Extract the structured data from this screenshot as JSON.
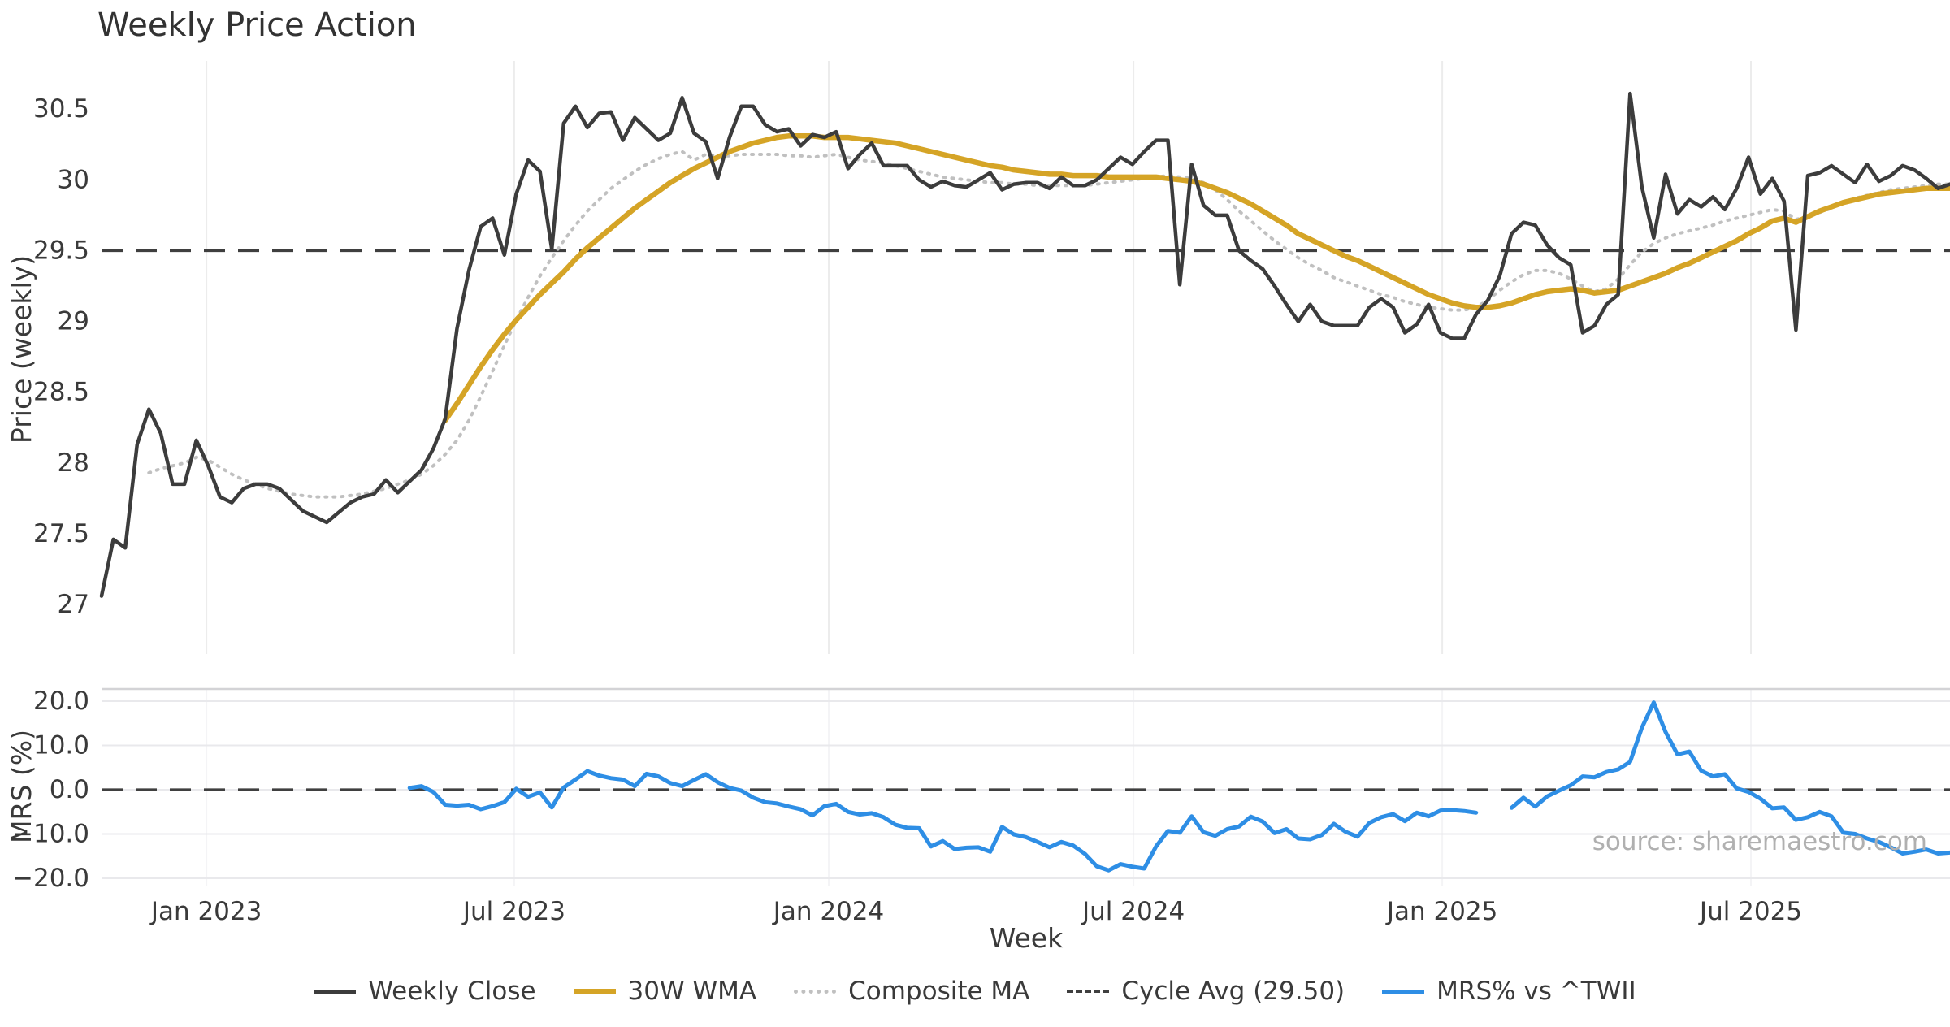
{
  "title": "Weekly Price Action",
  "source_note": "source: sharemaestro.com",
  "colors": {
    "weekly_close": "#3c3c3c",
    "wma": "#d5a426",
    "composite": "#c0c0c0",
    "cycle_avg": "#3f3f3f",
    "mrs": "#2e8ee5",
    "grid": "#ececec",
    "grid_h": "#e9e9ec",
    "panel_spine": "#d3d3d6",
    "tick_text": "#3a3a3a"
  },
  "legend": [
    {
      "label": "Weekly Close",
      "style": "solid",
      "color": "#3c3c3c",
      "thickness": 5
    },
    {
      "label": "30W WMA",
      "style": "solid",
      "color": "#d5a426",
      "thickness": 6
    },
    {
      "label": "Composite MA",
      "style": "dotted",
      "color": "#c0c0c0",
      "thickness": 5
    },
    {
      "label": "Cycle Avg (29.50)",
      "style": "dashed",
      "color": "#3f3f3f",
      "thickness": 4
    },
    {
      "label": "MRS% vs ^TWII",
      "style": "solid",
      "color": "#2e8ee5",
      "thickness": 5
    }
  ],
  "chart_data": {
    "type": "line",
    "title": "Weekly Price Action",
    "xlabel": "Week",
    "x_unit": "weekly, Nov 2022 - Oct 2025",
    "weeks_total": 157,
    "xticks": [
      {
        "pos": 8.85,
        "label": "Jan 2023"
      },
      {
        "pos": 34.83,
        "label": "Jul 2023"
      },
      {
        "pos": 61.37,
        "label": "Jan 2024"
      },
      {
        "pos": 87.09,
        "label": "Jul 2024"
      },
      {
        "pos": 113.15,
        "label": "Jan 2025"
      },
      {
        "pos": 139.2,
        "label": "Jul 2025"
      }
    ],
    "panels": [
      {
        "id": "price",
        "ylabel": "Price (weekly)",
        "ylim": [
          26.65,
          30.84
        ],
        "yticks": [
          {
            "v": 27,
            "label": "27"
          },
          {
            "v": 27.5,
            "label": "27.5"
          },
          {
            "v": 28,
            "label": "28"
          },
          {
            "v": 28.5,
            "label": "28.5"
          },
          {
            "v": 29,
            "label": "29"
          },
          {
            "v": 29.5,
            "label": "29.5"
          },
          {
            "v": 30,
            "label": "30"
          },
          {
            "v": 30.5,
            "label": "30.5"
          }
        ],
        "ref_line": {
          "value": 29.5,
          "label": "Cycle Avg (29.50)"
        },
        "grid": "vertical",
        "series": [
          {
            "name": "Weekly Close",
            "color": "#3c3c3c",
            "width": 4.5,
            "dash": null,
            "values": [
              27.06,
              27.46,
              27.4,
              28.13,
              28.38,
              28.21,
              27.85,
              27.85,
              28.16,
              27.98,
              27.76,
              27.72,
              27.82,
              27.85,
              27.85,
              27.82,
              27.74,
              27.66,
              27.62,
              27.58,
              27.65,
              27.72,
              27.76,
              27.78,
              27.88,
              27.79,
              27.87,
              27.95,
              28.1,
              28.31,
              28.95,
              29.36,
              29.67,
              29.73,
              29.47,
              29.9,
              30.14,
              30.06,
              29.51,
              30.4,
              30.52,
              30.37,
              30.47,
              30.48,
              30.28,
              30.44,
              30.36,
              30.28,
              30.33,
              30.58,
              30.33,
              30.27,
              30.01,
              30.3,
              30.52,
              30.52,
              30.39,
              30.34,
              30.36,
              30.24,
              30.32,
              30.3,
              30.34,
              30.08,
              30.18,
              30.26,
              30.1,
              30.1,
              30.1,
              30.0,
              29.95,
              29.99,
              29.96,
              29.95,
              30.0,
              30.05,
              29.93,
              29.97,
              29.98,
              29.98,
              29.94,
              30.02,
              29.96,
              29.96,
              30.0,
              30.08,
              30.16,
              30.11,
              30.2,
              30.28,
              30.28,
              29.26,
              30.11,
              29.82,
              29.75,
              29.75,
              29.5,
              29.43,
              29.37,
              29.25,
              29.12,
              29.0,
              29.12,
              29.0,
              28.97,
              28.97,
              28.97,
              29.1,
              29.16,
              29.1,
              28.92,
              28.98,
              29.12,
              28.92,
              28.88,
              28.88,
              29.05,
              29.15,
              29.32,
              29.62,
              29.7,
              29.68,
              29.54,
              29.45,
              29.4,
              28.92,
              28.97,
              29.12,
              29.19,
              30.61,
              29.95,
              29.59,
              30.04,
              29.76,
              29.86,
              29.81,
              29.88,
              29.79,
              29.94,
              30.16,
              29.9,
              30.01,
              29.85,
              28.94,
              30.03,
              30.05,
              30.1,
              30.04,
              29.98,
              30.11,
              29.99,
              30.03,
              30.1,
              30.07,
              30.01,
              29.94,
              29.97
            ]
          },
          {
            "name": "30W WMA",
            "color": "#d5a426",
            "width": 6.5,
            "dash": null,
            "values": [
              null,
              null,
              null,
              null,
              null,
              null,
              null,
              null,
              null,
              null,
              null,
              null,
              null,
              null,
              null,
              null,
              null,
              null,
              null,
              null,
              null,
              null,
              null,
              null,
              null,
              null,
              null,
              null,
              null,
              28.3,
              28.42,
              28.55,
              28.68,
              28.8,
              28.91,
              29.01,
              29.1,
              29.19,
              29.27,
              29.35,
              29.44,
              29.52,
              29.59,
              29.66,
              29.73,
              29.8,
              29.86,
              29.92,
              29.98,
              30.03,
              30.08,
              30.12,
              30.16,
              30.2,
              30.23,
              30.26,
              30.28,
              30.3,
              30.31,
              30.31,
              30.31,
              30.3,
              30.3,
              30.3,
              30.29,
              30.28,
              30.27,
              30.26,
              30.24,
              30.22,
              30.2,
              30.18,
              30.16,
              30.14,
              30.12,
              30.1,
              30.09,
              30.07,
              30.06,
              30.05,
              30.04,
              30.04,
              30.03,
              30.03,
              30.03,
              30.02,
              30.02,
              30.02,
              30.02,
              30.02,
              30.01,
              30.0,
              29.99,
              29.97,
              29.94,
              29.91,
              29.87,
              29.83,
              29.78,
              29.73,
              29.68,
              29.62,
              29.58,
              29.54,
              29.5,
              29.46,
              29.43,
              29.39,
              29.35,
              29.31,
              29.27,
              29.23,
              29.19,
              29.16,
              29.13,
              29.11,
              29.1,
              29.1,
              29.11,
              29.13,
              29.16,
              29.19,
              29.21,
              29.22,
              29.23,
              29.22,
              29.2,
              29.21,
              29.22,
              29.25,
              29.28,
              29.31,
              29.34,
              29.38,
              29.41,
              29.45,
              29.49,
              29.53,
              29.57,
              29.62,
              29.66,
              29.71,
              29.73,
              29.7,
              29.74,
              29.78,
              29.81,
              29.84,
              29.86,
              29.88,
              29.9,
              29.91,
              29.92,
              29.93,
              29.94,
              29.94,
              29.94
            ]
          },
          {
            "name": "Composite MA",
            "color": "#c0c0c0",
            "width": 4,
            "dash": "2 8",
            "values": [
              null,
              null,
              null,
              null,
              27.93,
              27.96,
              27.98,
              28.0,
              28.04,
              28.02,
              27.97,
              27.92,
              27.88,
              27.85,
              27.82,
              27.8,
              27.78,
              27.77,
              27.76,
              27.76,
              27.76,
              27.77,
              27.78,
              27.8,
              27.82,
              27.85,
              27.88,
              27.92,
              27.98,
              28.06,
              28.16,
              28.3,
              28.47,
              28.65,
              28.83,
              29.01,
              29.17,
              29.32,
              29.45,
              29.57,
              29.68,
              29.78,
              29.86,
              29.94,
              30.0,
              30.06,
              30.11,
              30.15,
              30.18,
              30.2,
              30.14,
              30.18,
              30.17,
              30.17,
              30.18,
              30.18,
              30.18,
              30.18,
              30.17,
              30.17,
              30.16,
              30.17,
              30.18,
              30.16,
              30.14,
              30.13,
              30.12,
              30.1,
              30.08,
              30.06,
              30.04,
              30.02,
              30.01,
              30.0,
              29.99,
              29.98,
              29.98,
              29.97,
              29.97,
              29.96,
              29.96,
              29.96,
              29.96,
              29.96,
              29.97,
              29.98,
              29.99,
              30.0,
              30.01,
              30.02,
              30.03,
              30.02,
              30.01,
              29.98,
              29.93,
              29.86,
              29.78,
              29.71,
              29.64,
              29.57,
              29.51,
              29.45,
              29.4,
              29.36,
              29.31,
              29.28,
              29.25,
              29.22,
              29.19,
              29.17,
              29.14,
              29.12,
              29.1,
              29.09,
              29.08,
              29.08,
              29.1,
              29.15,
              29.22,
              29.28,
              29.33,
              29.36,
              29.36,
              29.34,
              29.3,
              29.25,
              29.21,
              29.23,
              29.3,
              29.4,
              29.49,
              29.55,
              29.59,
              29.62,
              29.64,
              29.66,
              29.68,
              29.71,
              29.73,
              29.75,
              29.77,
              29.79,
              29.78,
              29.72,
              29.74,
              29.77,
              29.8,
              29.84,
              29.87,
              29.89,
              29.91,
              29.93,
              29.94,
              29.95,
              29.96,
              29.97,
              29.97
            ]
          }
        ]
      },
      {
        "id": "mrs",
        "ylabel": "MRS (%)",
        "ylim": [
          -21.65,
          22.75
        ],
        "yticks": [
          {
            "v": 20,
            "label": "20.0"
          },
          {
            "v": 10,
            "label": "10.0"
          },
          {
            "v": 0,
            "label": "0.0"
          },
          {
            "v": -10,
            "label": "−10.0"
          },
          {
            "v": -20,
            "label": "−20.0"
          }
        ],
        "ref_line": {
          "value": 0,
          "label": "zero line"
        },
        "grid": "horizontal",
        "series": [
          {
            "name": "MRS% vs ^TWII",
            "color": "#2e8ee5",
            "width": 5,
            "dash": null,
            "values": [
              null,
              null,
              null,
              null,
              null,
              null,
              null,
              null,
              null,
              null,
              null,
              null,
              null,
              null,
              null,
              null,
              null,
              null,
              null,
              null,
              null,
              null,
              null,
              null,
              null,
              null,
              0.4,
              0.8,
              -0.5,
              -3.4,
              -3.6,
              -3.4,
              -4.4,
              -3.7,
              -2.8,
              0.2,
              -1.6,
              -0.6,
              -4.0,
              0.5,
              2.3,
              4.2,
              3.2,
              2.6,
              2.3,
              0.8,
              3.6,
              3.0,
              1.5,
              0.8,
              2.2,
              3.5,
              1.7,
              0.4,
              -0.2,
              -1.8,
              -2.8,
              -3.1,
              -3.8,
              -4.4,
              -5.8,
              -3.7,
              -3.2,
              -5.0,
              -5.6,
              -5.3,
              -6.2,
              -7.9,
              -8.6,
              -8.7,
              -12.8,
              -11.6,
              -13.4,
              -13.1,
              -13.0,
              -14.0,
              -8.4,
              -10.1,
              -10.7,
              -11.8,
              -13.0,
              -11.8,
              -12.6,
              -14.5,
              -17.3,
              -18.2,
              -16.8,
              -17.4,
              -17.8,
              -12.8,
              -9.3,
              -9.7,
              -6.0,
              -9.6,
              -10.4,
              -8.9,
              -8.3,
              -6.1,
              -7.2,
              -9.8,
              -8.9,
              -11.0,
              -11.2,
              -10.2,
              -7.7,
              -9.5,
              -10.6,
              -7.5,
              -6.2,
              -5.5,
              -7.1,
              -5.2,
              -6.0,
              -4.7,
              -4.6,
              -4.8,
              -5.2,
              null,
              null,
              -4.1,
              -1.8,
              -3.8,
              -1.5,
              -0.2,
              1.0,
              3.0,
              2.8,
              4.0,
              4.6,
              6.3,
              14.0,
              19.7,
              13.0,
              8.0,
              8.6,
              4.3,
              3.0,
              3.5,
              0.3,
              -0.5,
              -2.0,
              -4.2,
              -4.0,
              -6.8,
              -6.2,
              -5.0,
              -6.0,
              -9.7,
              -10.0,
              -11.0,
              -11.8,
              -13.0,
              -14.4,
              -14.0,
              -13.5,
              -14.4,
              -14.2
            ]
          }
        ]
      }
    ]
  }
}
